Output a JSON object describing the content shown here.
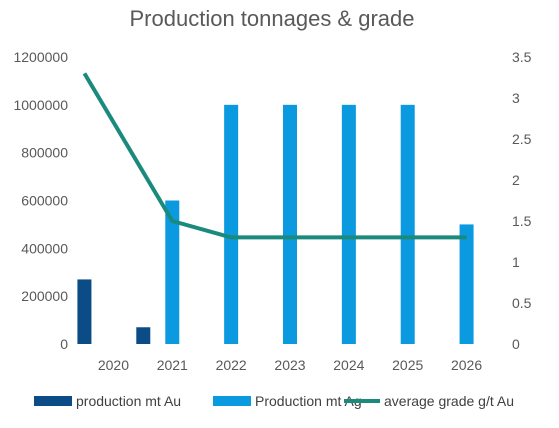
{
  "chart_data": {
    "type": "bar",
    "title": "Production tonnages & grade",
    "categories": [
      "2020",
      "2021",
      "2022",
      "2023",
      "2024",
      "2025",
      "2026"
    ],
    "series": [
      {
        "name": "production mt Au",
        "kind": "bar",
        "axis": "left",
        "color": "#0b4c86",
        "values": [
          270000,
          70000,
          0,
          0,
          0,
          0,
          0
        ]
      },
      {
        "name": "Production mt Ag",
        "kind": "bar",
        "axis": "left",
        "color": "#0b99e0",
        "values": [
          0,
          600000,
          1000000,
          1000000,
          1000000,
          1000000,
          500000
        ]
      },
      {
        "name": "average grade g/t Au",
        "kind": "line",
        "axis": "right",
        "color": "#1a8a7c",
        "values": [
          3.3,
          1.5,
          1.3,
          1.3,
          1.3,
          1.3,
          1.3
        ]
      }
    ],
    "y_left": {
      "min": 0,
      "max": 1200000,
      "ticks": [
        "0",
        "200000",
        "400000",
        "600000",
        "800000",
        "1000000",
        "1200000"
      ]
    },
    "y_right": {
      "min": 0,
      "max": 3.5,
      "ticks": [
        "0",
        "0.5",
        "1",
        "1.5",
        "2",
        "2.5",
        "3",
        "3.5"
      ]
    },
    "grid": false,
    "legend_position": "bottom"
  }
}
